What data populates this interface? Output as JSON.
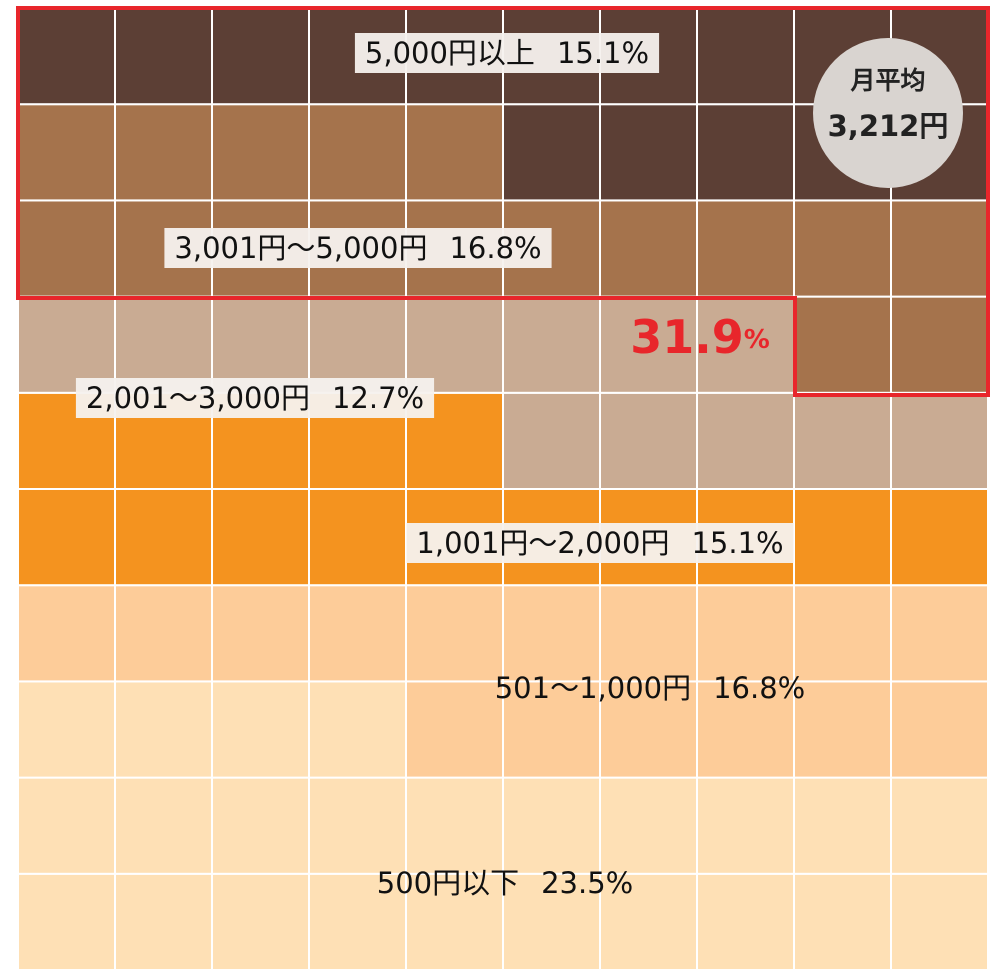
{
  "chart_data": {
    "type": "waffle",
    "categories": [
      "500円以下",
      "501～1,000円",
      "1,001円～2,000円",
      "2,001～3,000円",
      "3,001円～5,000円",
      "5,000円以上"
    ],
    "values": [
      23.5,
      16.8,
      15.1,
      12.7,
      16.8,
      15.1
    ],
    "value_labels": [
      "23.5%",
      "16.8%",
      "15.1%",
      "12.7%",
      "16.8%",
      "15.1%"
    ],
    "colors": [
      "#fee0b5",
      "#fdcc99",
      "#f4931f",
      "#c9ab93",
      "#a5734c",
      "#5c3f35"
    ],
    "highlight_value": "31.9",
    "highlight_unit": "%",
    "average_label": "月平均",
    "average_value": "3,212円"
  }
}
